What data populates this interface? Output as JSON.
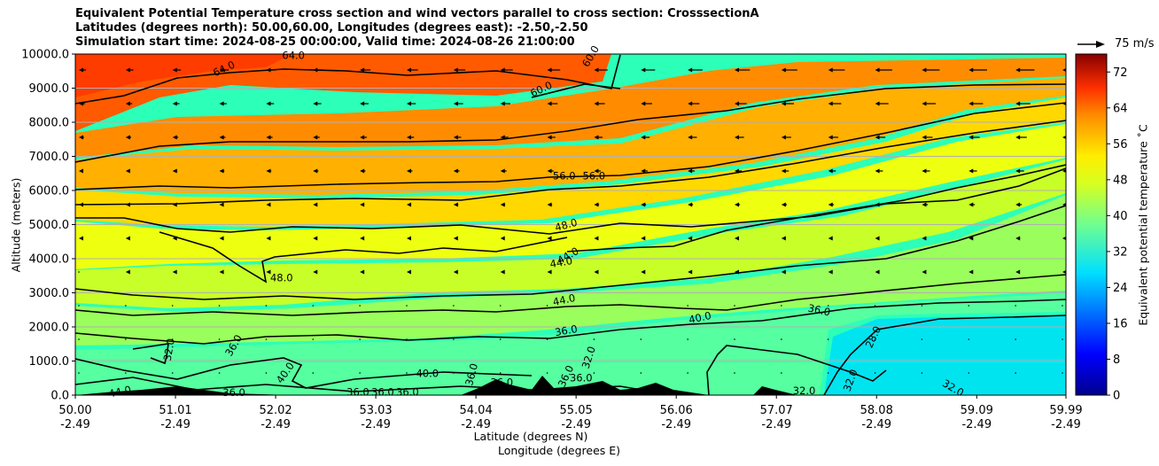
{
  "titles": {
    "line1": "Equivalent Potential Temperature cross section and wind vectors parallel to cross section: CrosssectionA",
    "line2": "Latitudes (degrees north): 50.00,60.00, Longitudes (degrees east): -2.50,-2.50",
    "line3": "Simulation start time: 2024-08-25 00:00:00, Valid time: 2024-08-26 21:00:00"
  },
  "axes": {
    "ylabel": "Altitude (meters)",
    "xlabel_lat": "Latitude (degrees N)",
    "xlabel_lon": "Longitude (degrees E)",
    "colorbar_label": "Equivalent potential temperature ˚C",
    "reference_vector": "75 m/s"
  },
  "chart_data": {
    "type": "heatmap",
    "subtype": "cross-section contour with wind vectors",
    "x_ticks": [
      {
        "lat": "50.00",
        "lon": "-2.49"
      },
      {
        "lat": "51.01",
        "lon": "-2.49"
      },
      {
        "lat": "52.02",
        "lon": "-2.49"
      },
      {
        "lat": "53.03",
        "lon": "-2.49"
      },
      {
        "lat": "54.04",
        "lon": "-2.49"
      },
      {
        "lat": "55.05",
        "lon": "-2.49"
      },
      {
        "lat": "56.06",
        "lon": "-2.49"
      },
      {
        "lat": "57.07",
        "lon": "-2.49"
      },
      {
        "lat": "58.08",
        "lon": "-2.49"
      },
      {
        "lat": "59.09",
        "lon": "-2.49"
      },
      {
        "lat": "59.99",
        "lon": "-2.49"
      }
    ],
    "xlim": [
      50.0,
      59.99
    ],
    "y_ticks": [
      "0.0",
      "1000.0",
      "2000.0",
      "3000.0",
      "4000.0",
      "5000.0",
      "6000.0",
      "7000.0",
      "8000.0",
      "9000.0",
      "10000.0"
    ],
    "ylim": [
      0,
      10000
    ],
    "colorbar_ticks": [
      "0",
      "8",
      "16",
      "24",
      "32",
      "40",
      "48",
      "56",
      "64",
      "72"
    ],
    "colorbar_range": [
      0,
      76
    ],
    "grid": "horizontal",
    "contour_labels": [
      {
        "text": "64.0",
        "lat": 51.5,
        "alt": 9560,
        "rot": -25
      },
      {
        "text": "64.0",
        "lat": 52.2,
        "alt": 9950,
        "rot": 0
      },
      {
        "text": "60.0",
        "lat": 55.2,
        "alt": 9930,
        "rot": -60
      },
      {
        "text": "60.0",
        "lat": 54.7,
        "alt": 8960,
        "rot": -25
      },
      {
        "text": "56.0",
        "lat": 54.93,
        "alt": 6420,
        "rot": 0
      },
      {
        "text": "56.0",
        "lat": 55.23,
        "alt": 6420,
        "rot": 0
      },
      {
        "text": "48.0",
        "lat": 54.95,
        "alt": 4980,
        "rot": -15
      },
      {
        "text": "44.0",
        "lat": 54.97,
        "alt": 4080,
        "rot": -30
      },
      {
        "text": "44.0",
        "lat": 54.9,
        "alt": 3880,
        "rot": -10
      },
      {
        "text": "48.0",
        "lat": 52.08,
        "alt": 3430,
        "rot": 0
      },
      {
        "text": "44.0",
        "lat": 54.93,
        "alt": 2780,
        "rot": -12
      },
      {
        "text": "40.0",
        "lat": 56.3,
        "alt": 2260,
        "rot": -12
      },
      {
        "text": "36.0",
        "lat": 57.5,
        "alt": 2480,
        "rot": 12
      },
      {
        "text": "36.0",
        "lat": 54.95,
        "alt": 1880,
        "rot": -10
      },
      {
        "text": "28.0",
        "lat": 58.05,
        "alt": 1700,
        "rot": -65
      },
      {
        "text": "32.0",
        "lat": 50.95,
        "alt": 1330,
        "rot": -80
      },
      {
        "text": "36.0",
        "lat": 51.6,
        "alt": 1450,
        "rot": -60
      },
      {
        "text": "32.0",
        "lat": 55.18,
        "alt": 1100,
        "rot": -72
      },
      {
        "text": "40.0",
        "lat": 52.12,
        "alt": 650,
        "rot": -55
      },
      {
        "text": "40.0",
        "lat": 53.55,
        "alt": 620,
        "rot": 0
      },
      {
        "text": "36.0",
        "lat": 55.1,
        "alt": 490,
        "rot": 0
      },
      {
        "text": "36.0",
        "lat": 54.0,
        "alt": 600,
        "rot": -75
      },
      {
        "text": "36.0",
        "lat": 54.95,
        "alt": 550,
        "rot": -65
      },
      {
        "text": "36.0",
        "lat": 54.3,
        "alt": 360,
        "rot": 0
      },
      {
        "text": "32.0",
        "lat": 57.82,
        "alt": 430,
        "rot": -70
      },
      {
        "text": "32.0",
        "lat": 58.85,
        "alt": 200,
        "rot": 30
      },
      {
        "text": "32.0",
        "lat": 57.35,
        "alt": 120,
        "rot": 0
      },
      {
        "text": "44.0",
        "lat": 50.45,
        "alt": 90,
        "rot": -12
      },
      {
        "text": "36.0",
        "lat": 51.6,
        "alt": 60,
        "rot": 0
      },
      {
        "text": "36.0",
        "lat": 52.85,
        "alt": 80,
        "rot": 0
      },
      {
        "text": "36.0",
        "lat": 53.1,
        "alt": 80,
        "rot": 0
      },
      {
        "text": "36.0",
        "lat": 53.35,
        "alt": 80,
        "rot": 0
      }
    ],
    "notes": "Shaded equivalent potential temperature (°C) with black isentrope contours every 4°C; wind vectors point toward lower latitude aloft (strongest near 9500 m over 57-60N). Terrain masked in black near the surface."
  },
  "colors": {
    "background": "#ffffff",
    "terrain": "#000000"
  }
}
